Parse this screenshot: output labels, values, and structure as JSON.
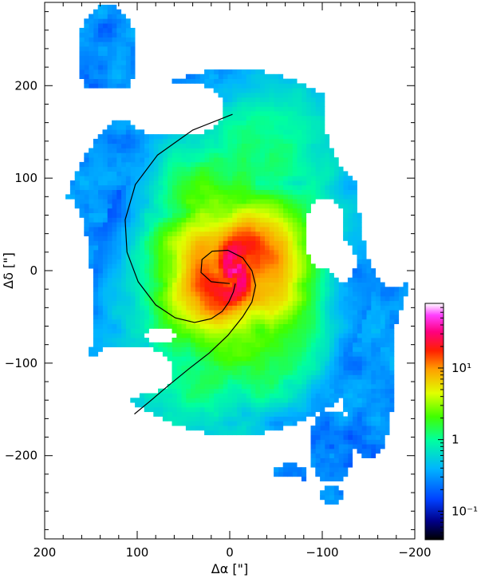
{
  "chart_data": {
    "type": "heatmap",
    "title": "",
    "xlabel": "Δα [\"]",
    "ylabel": "Δδ [\"]",
    "xlim": [
      200,
      -200
    ],
    "ylim": [
      -290,
      290
    ],
    "x_ticks": [
      200,
      100,
      0,
      -100,
      -200
    ],
    "x_tick_labels": [
      "200",
      "100",
      "0",
      "−100",
      "−200"
    ],
    "y_ticks": [
      200,
      100,
      0,
      -100,
      -200
    ],
    "y_tick_labels": [
      "200",
      "100",
      "0",
      "−100",
      "−200"
    ],
    "colorbar": {
      "scale": "log",
      "range": [
        0.04,
        80
      ],
      "ticks": [
        0.1,
        1,
        10
      ],
      "tick_labels": [
        "10⁻¹",
        "1",
        "10¹"
      ],
      "colormap": [
        "#000000",
        "#0000ff",
        "#00c8ff",
        "#00ff80",
        "#ffff00",
        "#ff8000",
        "#ff0000",
        "#ff00ff",
        "#ffffff"
      ]
    },
    "overlay": {
      "description_kind": "logarithmic spiral arms",
      "color": "#000000",
      "arms": [
        {
          "name": "arm-outer",
          "points": [
            [
              -3,
              169
            ],
            [
              40,
              152
            ],
            [
              78,
              125
            ],
            [
              102,
              93
            ],
            [
              113,
              55
            ],
            [
              111,
              20
            ],
            [
              99,
              -12
            ],
            [
              80,
              -37
            ],
            [
              59,
              -51
            ],
            [
              38,
              -56
            ],
            [
              20,
              -52
            ],
            [
              8,
              -44
            ],
            [
              1,
              -34
            ],
            [
              -4,
              -23
            ],
            [
              -6,
              -14
            ]
          ]
        },
        {
          "name": "arm-inner",
          "points": [
            [
              0,
              -14
            ],
            [
              20,
              -12
            ],
            [
              31,
              -2
            ],
            [
              30,
              12
            ],
            [
              19,
              21
            ],
            [
              2,
              22
            ],
            [
              -14,
              14
            ],
            [
              -24,
              0
            ],
            [
              -28,
              -16
            ],
            [
              -24,
              -34
            ],
            [
              -14,
              -50
            ],
            [
              2,
              -70
            ],
            [
              22,
              -89
            ],
            [
              44,
              -106
            ],
            [
              66,
              -124
            ],
            [
              86,
              -141
            ],
            [
              103,
              -155
            ]
          ]
        }
      ]
    },
    "intensity_structure": {
      "center": [
        -5,
        0
      ],
      "peak_value": 60,
      "position_angle_deg": 23,
      "disk_extent": {
        "x": [
          -180,
          165
        ],
        "y": [
          -210,
          285
        ]
      }
    }
  }
}
